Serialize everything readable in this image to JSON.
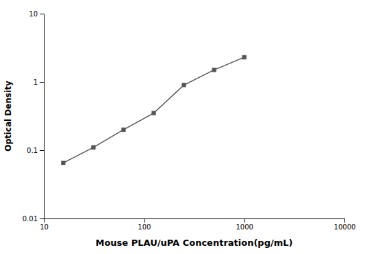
{
  "chart_data": {
    "type": "line",
    "x": [
      15.625,
      31.25,
      62.5,
      125,
      250,
      500,
      1000
    ],
    "values": [
      0.065,
      0.11,
      0.2,
      0.35,
      0.9,
      1.5,
      2.3
    ],
    "xlabel": "Mouse PLAU/uPA Concentration(pg/mL)",
    "ylabel": "Optical Density",
    "xlim": [
      10,
      10000
    ],
    "ylim": [
      0.01,
      10
    ],
    "xticks": [
      10,
      100,
      1000,
      10000
    ],
    "yticks": [
      0.01,
      0.1,
      1,
      10
    ],
    "log": true,
    "grid": false,
    "color": "#555555",
    "marker": "square",
    "line_style": "solid"
  }
}
